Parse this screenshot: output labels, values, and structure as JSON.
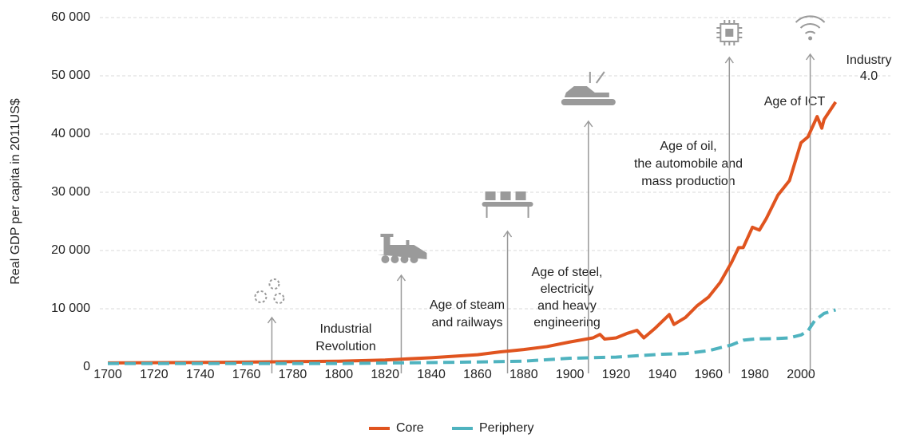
{
  "chart_data": {
    "type": "line",
    "y_label": "Real GDP per capita in 2011US$",
    "xlim": [
      1700,
      2000
    ],
    "xticks": [
      1700,
      1720,
      1740,
      1760,
      1780,
      1800,
      1820,
      1840,
      1860,
      1880,
      1900,
      1920,
      1940,
      1960,
      1980,
      2000
    ],
    "ylim": [
      0,
      60000
    ],
    "yticks": [
      0,
      {
        "value": 10000,
        "label": "10 000"
      },
      {
        "value": 20000,
        "label": "20 000"
      },
      {
        "value": 30000,
        "label": "30 000"
      },
      {
        "value": 40000,
        "label": "40 000"
      },
      {
        "value": 50000,
        "label": "50 000"
      },
      {
        "value": 60000,
        "label": "60 000"
      }
    ],
    "grid": true,
    "legend": "bottom",
    "series": [
      {
        "name": "Core",
        "color": "#e0541f",
        "dashed": false,
        "x": [
          1700,
          1750,
          1800,
          1820,
          1840,
          1860,
          1870,
          1880,
          1890,
          1900,
          1910,
          1913,
          1915,
          1920,
          1925,
          1929,
          1932,
          1937,
          1943,
          1945,
          1950,
          1955,
          1960,
          1965,
          1970,
          1973,
          1975,
          1979,
          1982,
          1985,
          1990,
          1995,
          2000,
          2003,
          2007,
          2009,
          2010,
          2015
        ],
        "values": [
          700,
          800,
          1000,
          1200,
          1600,
          2100,
          2600,
          3000,
          3500,
          4300,
          5000,
          5600,
          4800,
          5000,
          5800,
          6300,
          5000,
          6700,
          9000,
          7300,
          8500,
          10500,
          12000,
          14500,
          18000,
          20500,
          20500,
          24000,
          23500,
          25500,
          29500,
          32000,
          38500,
          39500,
          43000,
          41000,
          42500,
          45500
        ]
      },
      {
        "name": "Periphery",
        "color": "#4fb3bf",
        "dashed": true,
        "x": [
          1700,
          1800,
          1850,
          1880,
          1900,
          1920,
          1940,
          1950,
          1960,
          1970,
          1975,
          1980,
          1990,
          1995,
          2000,
          2003,
          2006,
          2010,
          2015
        ],
        "values": [
          600,
          600,
          800,
          1000,
          1500,
          1700,
          2200,
          2300,
          2800,
          3800,
          4600,
          4800,
          4900,
          5000,
          5500,
          6200,
          8000,
          9200,
          9800
        ]
      }
    ],
    "annotations": [
      {
        "x": 1771,
        "lines": [
          "Industrial",
          "Revolution"
        ]
      },
      {
        "x": 1827,
        "lines": [
          "Age of steam",
          "and railways"
        ]
      },
      {
        "x": 1873,
        "lines": [
          "Age of steel,",
          "electricity",
          "and heavy",
          "engineering"
        ]
      },
      {
        "x": 1908,
        "lines": [
          "Age of oil,",
          "the automobile and",
          "mass production"
        ]
      },
      {
        "x": 1969,
        "lines": [
          "Age of ICT"
        ]
      },
      {
        "x": 2004,
        "lines": [
          "Industry",
          "4.0"
        ]
      }
    ]
  }
}
